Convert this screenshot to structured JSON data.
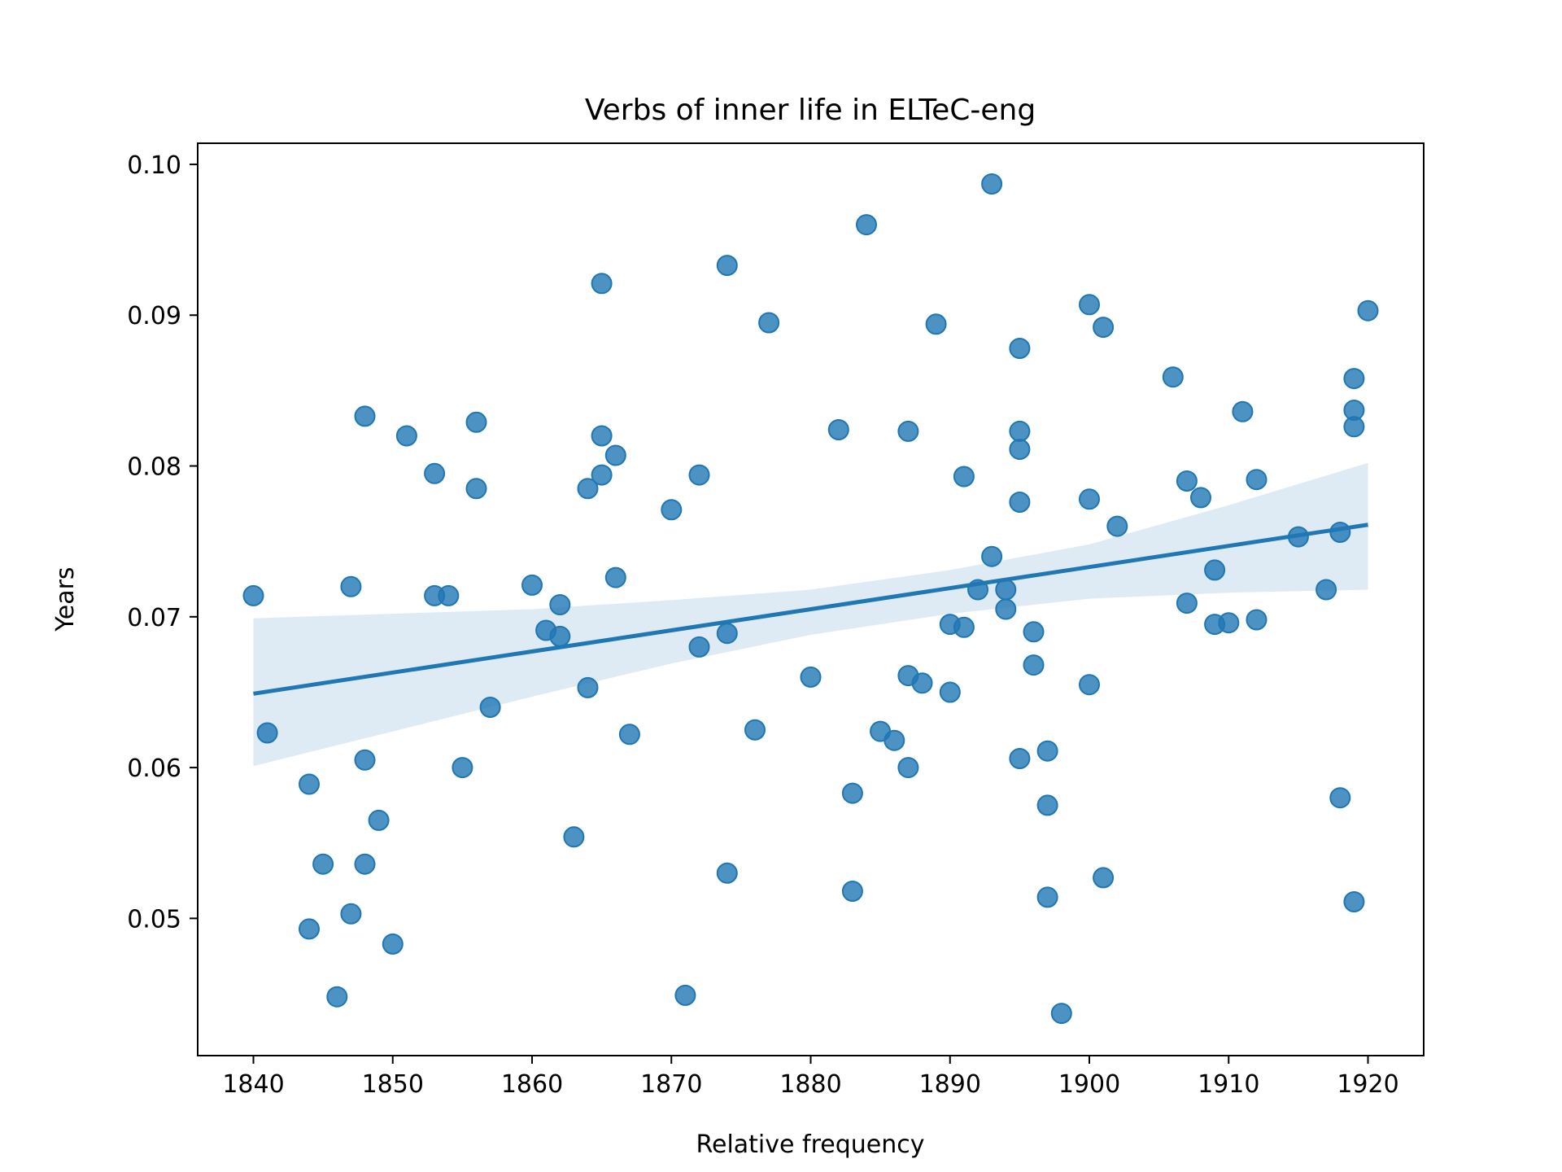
{
  "chart_data": {
    "type": "scatter",
    "title": "Verbs of inner life in ELTeC-eng",
    "xlabel": "Relative frequency",
    "ylabel": "Years",
    "xlim": [
      1836,
      1924
    ],
    "ylim": [
      0.0409,
      0.1014
    ],
    "xticks": [
      1840,
      1850,
      1860,
      1870,
      1880,
      1890,
      1900,
      1910,
      1920
    ],
    "yticks": [
      0.05,
      0.06,
      0.07,
      0.08,
      0.09,
      0.1
    ],
    "xtick_labels": [
      "1840",
      "1850",
      "1860",
      "1870",
      "1880",
      "1890",
      "1900",
      "1910",
      "1920"
    ],
    "ytick_labels": [
      "0.05",
      "0.06",
      "0.07",
      "0.08",
      "0.09",
      "0.10"
    ],
    "grid": false,
    "colors": {
      "points": "#1f77b4",
      "line": "#1f77b4",
      "band": "#1f77b4"
    },
    "points": [
      [
        1840,
        0.0714
      ],
      [
        1841,
        0.0623
      ],
      [
        1844,
        0.0589
      ],
      [
        1844,
        0.0493
      ],
      [
        1845,
        0.0536
      ],
      [
        1846,
        0.0448
      ],
      [
        1847,
        0.072
      ],
      [
        1847,
        0.0503
      ],
      [
        1848,
        0.0833
      ],
      [
        1848,
        0.0605
      ],
      [
        1848,
        0.0536
      ],
      [
        1849,
        0.0565
      ],
      [
        1850,
        0.0483
      ],
      [
        1851,
        0.082
      ],
      [
        1853,
        0.0795
      ],
      [
        1853,
        0.0714
      ],
      [
        1854,
        0.0714
      ],
      [
        1855,
        0.06
      ],
      [
        1856,
        0.0829
      ],
      [
        1856,
        0.0785
      ],
      [
        1857,
        0.064
      ],
      [
        1860,
        0.0721
      ],
      [
        1861,
        0.0691
      ],
      [
        1862,
        0.0708
      ],
      [
        1862,
        0.0687
      ],
      [
        1863,
        0.0554
      ],
      [
        1864,
        0.0785
      ],
      [
        1864,
        0.0653
      ],
      [
        1865,
        0.0921
      ],
      [
        1865,
        0.082
      ],
      [
        1865,
        0.0794
      ],
      [
        1866,
        0.0807
      ],
      [
        1866,
        0.0726
      ],
      [
        1867,
        0.0622
      ],
      [
        1870,
        0.0771
      ],
      [
        1871,
        0.0449
      ],
      [
        1872,
        0.0794
      ],
      [
        1872,
        0.068
      ],
      [
        1874,
        0.0933
      ],
      [
        1874,
        0.0689
      ],
      [
        1874,
        0.053
      ],
      [
        1876,
        0.0625
      ],
      [
        1877,
        0.0895
      ],
      [
        1880,
        0.066
      ],
      [
        1882,
        0.0824
      ],
      [
        1883,
        0.0583
      ],
      [
        1883,
        0.0518
      ],
      [
        1884,
        0.096
      ],
      [
        1885,
        0.0624
      ],
      [
        1886,
        0.0618
      ],
      [
        1887,
        0.0823
      ],
      [
        1887,
        0.0661
      ],
      [
        1887,
        0.06
      ],
      [
        1888,
        0.0656
      ],
      [
        1889,
        0.0894
      ],
      [
        1890,
        0.0695
      ],
      [
        1890,
        0.065
      ],
      [
        1891,
        0.0793
      ],
      [
        1891,
        0.0693
      ],
      [
        1892,
        0.0718
      ],
      [
        1893,
        0.0987
      ],
      [
        1893,
        0.074
      ],
      [
        1894,
        0.0718
      ],
      [
        1894,
        0.0705
      ],
      [
        1895,
        0.0878
      ],
      [
        1895,
        0.0823
      ],
      [
        1895,
        0.0811
      ],
      [
        1895,
        0.0776
      ],
      [
        1895,
        0.0606
      ],
      [
        1896,
        0.069
      ],
      [
        1896,
        0.0668
      ],
      [
        1897,
        0.0611
      ],
      [
        1897,
        0.0575
      ],
      [
        1897,
        0.0514
      ],
      [
        1898,
        0.0437
      ],
      [
        1900,
        0.0907
      ],
      [
        1900,
        0.0778
      ],
      [
        1900,
        0.0655
      ],
      [
        1901,
        0.0892
      ],
      [
        1901,
        0.0527
      ],
      [
        1902,
        0.076
      ],
      [
        1906,
        0.0859
      ],
      [
        1907,
        0.079
      ],
      [
        1907,
        0.0709
      ],
      [
        1908,
        0.0779
      ],
      [
        1909,
        0.0731
      ],
      [
        1909,
        0.0695
      ],
      [
        1910,
        0.0696
      ],
      [
        1911,
        0.0836
      ],
      [
        1912,
        0.0791
      ],
      [
        1912,
        0.0698
      ],
      [
        1915,
        0.0753
      ],
      [
        1917,
        0.0718
      ],
      [
        1918,
        0.0756
      ],
      [
        1918,
        0.058
      ],
      [
        1919,
        0.0858
      ],
      [
        1919,
        0.0837
      ],
      [
        1919,
        0.0826
      ],
      [
        1919,
        0.0511
      ],
      [
        1920,
        0.0903
      ]
    ],
    "regression": {
      "x": [
        1840,
        1920
      ],
      "y": [
        0.0649,
        0.0761
      ]
    },
    "confidence_band": {
      "x": [
        1840,
        1850,
        1860,
        1870,
        1880,
        1890,
        1900,
        1910,
        1920
      ],
      "upper": [
        0.0699,
        0.0702,
        0.0705,
        0.0711,
        0.0718,
        0.0731,
        0.0748,
        0.0774,
        0.0802
      ],
      "lower": [
        0.0601,
        0.0624,
        0.0647,
        0.0669,
        0.0688,
        0.0702,
        0.0712,
        0.0716,
        0.0718
      ]
    }
  }
}
